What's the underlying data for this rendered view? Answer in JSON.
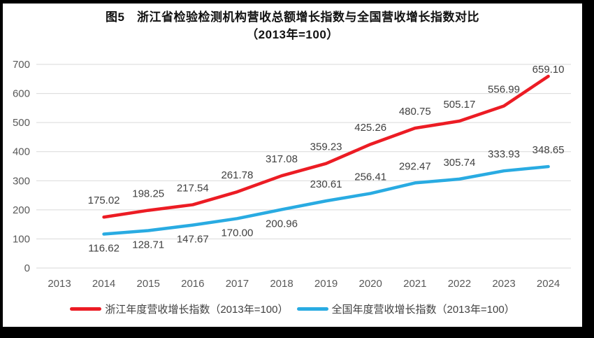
{
  "title": {
    "line1": "图5　浙江省检验检测机构营收总额增长指数与全国营收增长指数对比",
    "line2": "（2013年=100）"
  },
  "chart_data": {
    "type": "line",
    "title": "图5 浙江省检验检测机构营收总额增长指数与全国营收增长指数对比（2013年=100）",
    "categories": [
      "2013",
      "2014",
      "2015",
      "2016",
      "2017",
      "2018",
      "2019",
      "2020",
      "2021",
      "2022",
      "2023",
      "2024"
    ],
    "series": [
      {
        "name": "浙江年度营收增长指数（2013年=100）",
        "color": "#ec1c24",
        "values": [
          null,
          175.02,
          198.25,
          217.54,
          261.78,
          317.08,
          359.23,
          425.26,
          480.75,
          505.17,
          556.99,
          659.1
        ],
        "labels": [
          null,
          "175.02",
          "198.25",
          "217.54",
          "261.78",
          "317.08",
          "359.23",
          "425.26",
          "480.75",
          "505.17",
          "556.99",
          "659.10"
        ],
        "label_side": [
          null,
          "above",
          "above",
          "above",
          "above",
          "above",
          "above",
          "above",
          "above",
          "above",
          "above",
          "above_close"
        ]
      },
      {
        "name": "全国年度营收增长指数（2013年=100）",
        "color": "#29abe2",
        "values": [
          null,
          116.62,
          128.71,
          147.67,
          170.0,
          200.96,
          230.61,
          256.41,
          292.47,
          305.74,
          333.93,
          348.65
        ],
        "labels": [
          null,
          "116.62",
          "128.71",
          "147.67",
          "170.00",
          "200.96",
          "230.61",
          "256.41",
          "292.47",
          "305.74",
          "333.93",
          "348.65"
        ],
        "label_side": [
          null,
          "below",
          "below",
          "below",
          "below",
          "below",
          "above",
          "above",
          "above",
          "above",
          "above",
          "above"
        ]
      }
    ],
    "yticks": [
      0,
      100,
      200,
      300,
      400,
      500,
      600,
      700
    ],
    "ylim": [
      0,
      700
    ],
    "grid": true,
    "legend_position": "bottom",
    "xlabel": "",
    "ylabel": ""
  },
  "legend": {
    "items": [
      {
        "label": "浙江年度营收增长指数（2013年=100）",
        "color": "#ec1c24"
      },
      {
        "label": "全国年度营收增长指数（2013年=100）",
        "color": "#29abe2"
      }
    ]
  },
  "colors": {
    "gridline": "#d9d9d9",
    "axis_text": "#595959",
    "label_text": "#404040",
    "frame_border": "#000000"
  }
}
